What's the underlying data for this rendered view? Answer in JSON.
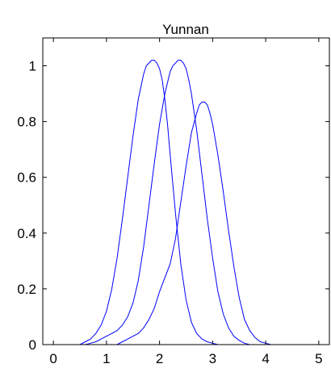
{
  "chart_data": {
    "type": "line",
    "title": "Yunnan",
    "xlabel": "",
    "ylabel": "",
    "xlim": [
      -0.2,
      5.2
    ],
    "ylim": [
      0,
      1.1
    ],
    "xticks": [
      "0",
      "1",
      "2",
      "3",
      "4",
      "5"
    ],
    "yticks": [
      "0",
      "0.2",
      "0.4",
      "0.6",
      "0.8",
      "1"
    ],
    "grid": false,
    "line_color": "#0000ff",
    "series": [
      {
        "x": [
          0.5,
          0.6,
          0.7,
          0.8,
          0.9,
          1.0,
          1.1,
          1.2,
          1.3,
          1.4,
          1.5,
          1.6,
          1.7,
          1.75,
          1.8,
          1.85,
          1.9,
          1.95,
          2.0,
          2.05,
          2.1,
          2.15,
          2.2,
          2.3,
          2.4,
          2.5,
          2.6,
          2.7,
          2.8,
          2.9,
          3.0,
          3.1
        ],
        "y": [
          0.0,
          0.01,
          0.02,
          0.04,
          0.07,
          0.12,
          0.2,
          0.31,
          0.45,
          0.6,
          0.75,
          0.88,
          0.97,
          1.0,
          1.01,
          1.02,
          1.02,
          1.01,
          0.99,
          0.95,
          0.88,
          0.79,
          0.68,
          0.47,
          0.29,
          0.16,
          0.08,
          0.04,
          0.02,
          0.01,
          0.005,
          0.0
        ]
      },
      {
        "x": [
          0.6,
          0.7,
          0.8,
          0.9,
          1.0,
          1.1,
          1.2,
          1.3,
          1.4,
          1.5,
          1.6,
          1.7,
          1.8,
          1.9,
          2.0,
          2.1,
          2.2,
          2.25,
          2.3,
          2.35,
          2.4,
          2.45,
          2.5,
          2.55,
          2.6,
          2.7,
          2.8,
          2.9,
          3.0,
          3.1,
          3.2,
          3.3,
          3.4,
          3.5,
          3.6,
          3.7
        ],
        "y": [
          0.0,
          0.005,
          0.01,
          0.02,
          0.03,
          0.04,
          0.05,
          0.07,
          0.1,
          0.15,
          0.23,
          0.35,
          0.5,
          0.65,
          0.79,
          0.9,
          0.98,
          1.0,
          1.01,
          1.02,
          1.02,
          1.01,
          0.99,
          0.95,
          0.9,
          0.77,
          0.61,
          0.45,
          0.31,
          0.19,
          0.11,
          0.06,
          0.03,
          0.015,
          0.005,
          0.0
        ]
      },
      {
        "x": [
          1.2,
          1.3,
          1.4,
          1.5,
          1.6,
          1.7,
          1.8,
          1.9,
          2.0,
          2.1,
          2.2,
          2.3,
          2.4,
          2.5,
          2.6,
          2.7,
          2.75,
          2.8,
          2.85,
          2.9,
          2.95,
          3.0,
          3.1,
          3.2,
          3.3,
          3.4,
          3.5,
          3.6,
          3.7,
          3.8,
          3.9,
          4.0,
          4.1
        ],
        "y": [
          0.0,
          0.01,
          0.02,
          0.03,
          0.04,
          0.06,
          0.09,
          0.13,
          0.19,
          0.24,
          0.29,
          0.38,
          0.51,
          0.64,
          0.76,
          0.83,
          0.86,
          0.87,
          0.87,
          0.86,
          0.83,
          0.79,
          0.68,
          0.55,
          0.41,
          0.28,
          0.17,
          0.09,
          0.05,
          0.025,
          0.01,
          0.005,
          0.0
        ]
      }
    ]
  }
}
